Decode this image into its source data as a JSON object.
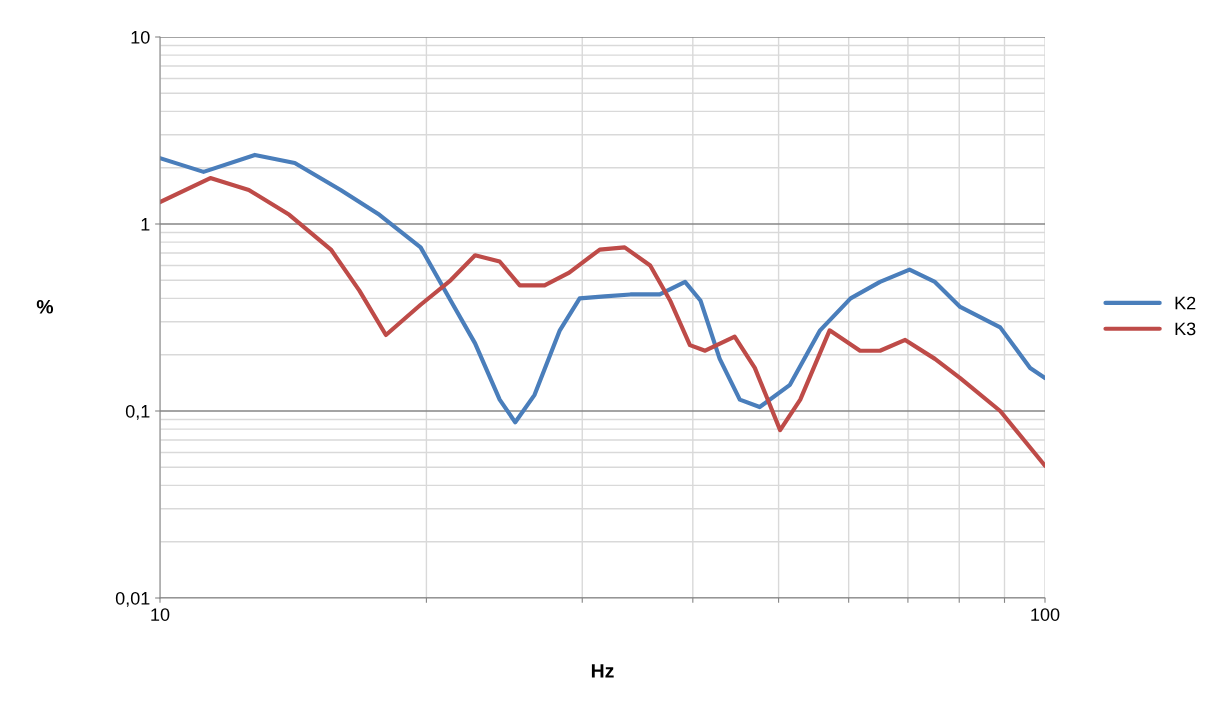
{
  "chart_data": {
    "type": "line",
    "xlabel": "Hz",
    "ylabel": "%",
    "log": "xy",
    "grid": true,
    "legend": "right",
    "marker": "none",
    "line_style": "solid",
    "xlim": [
      10,
      100
    ],
    "ylim": [
      0.01,
      10
    ],
    "xticks": [
      10,
      {
        "value": 20,
        "label": null
      },
      {
        "value": 30,
        "label": null
      },
      {
        "value": 40,
        "label": null
      },
      {
        "value": 50,
        "label": null
      },
      {
        "value": 60,
        "label": null
      },
      {
        "value": 70,
        "label": null
      },
      {
        "value": 80,
        "label": null
      },
      {
        "value": 90,
        "label": null
      },
      100
    ],
    "yticks": [
      {
        "value": 0.01,
        "label": "0,01"
      },
      {
        "value": 0.02,
        "label": null
      },
      {
        "value": 0.03,
        "label": null
      },
      {
        "value": 0.04,
        "label": null
      },
      {
        "value": 0.05,
        "label": null
      },
      {
        "value": 0.06,
        "label": null
      },
      {
        "value": 0.07,
        "label": null
      },
      {
        "value": 0.08,
        "label": null
      },
      {
        "value": 0.09,
        "label": null
      },
      {
        "value": 0.1,
        "label": "0,1"
      },
      {
        "value": 0.2,
        "label": null
      },
      {
        "value": 0.3,
        "label": null
      },
      {
        "value": 0.4,
        "label": null
      },
      {
        "value": 0.5,
        "label": null
      },
      {
        "value": 0.6,
        "label": null
      },
      {
        "value": 0.7,
        "label": null
      },
      {
        "value": 0.8,
        "label": null
      },
      {
        "value": 0.9,
        "label": null
      },
      1,
      {
        "value": 2,
        "label": null
      },
      {
        "value": 3,
        "label": null
      },
      {
        "value": 4,
        "label": null
      },
      {
        "value": 5,
        "label": null
      },
      {
        "value": 6,
        "label": null
      },
      {
        "value": 7,
        "label": null
      },
      {
        "value": 8,
        "label": null
      },
      {
        "value": 9,
        "label": null
      },
      10
    ],
    "series": [
      {
        "name": "K2",
        "color": "#4a7ebb",
        "x": [
          10,
          11.2,
          12.8,
          14.2,
          16,
          17.7,
          19.7,
          21.3,
          22.7,
          24.2,
          25.2,
          26.5,
          28.3,
          29.8,
          31.8,
          34,
          36.7,
          39.2,
          40.8,
          42.9,
          45.2,
          47.6,
          51.5,
          55.7,
          60.3,
          65.1,
          70.3,
          75.1,
          80.2,
          89,
          96.2,
          100
        ],
        "values": [
          2.25,
          1.9,
          2.34,
          2.12,
          1.52,
          1.12,
          0.75,
          0.39,
          0.23,
          0.115,
          0.087,
          0.122,
          0.27,
          0.4,
          0.41,
          0.42,
          0.42,
          0.49,
          0.39,
          0.19,
          0.115,
          0.105,
          0.138,
          0.27,
          0.4,
          0.49,
          0.57,
          0.49,
          0.36,
          0.28,
          0.17,
          0.15
        ]
      },
      {
        "name": "K3",
        "color": "#be4b48",
        "x": [
          10,
          11.4,
          12.6,
          14,
          15.6,
          16.8,
          18,
          19.7,
          21.3,
          22.7,
          24.2,
          25.5,
          27.2,
          29,
          31.4,
          33.5,
          35.8,
          37.7,
          39.7,
          41.3,
          44.6,
          47,
          50.2,
          52.9,
          57.1,
          61.8,
          65.1,
          69.5,
          75.1,
          80.2,
          89,
          100
        ],
        "values": [
          1.31,
          1.76,
          1.52,
          1.12,
          0.73,
          0.44,
          0.255,
          0.37,
          0.5,
          0.68,
          0.63,
          0.47,
          0.47,
          0.55,
          0.73,
          0.75,
          0.6,
          0.39,
          0.225,
          0.21,
          0.25,
          0.17,
          0.079,
          0.115,
          0.27,
          0.21,
          0.21,
          0.24,
          0.19,
          0.15,
          0.1,
          0.051
        ]
      }
    ]
  }
}
